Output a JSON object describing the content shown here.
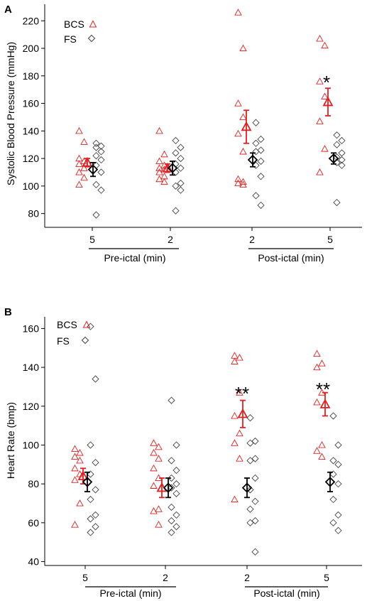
{
  "panels": [
    {
      "letter": "A",
      "ylabel": "Systolic Blood Pressure (mmHg)",
      "ylim": [
        70,
        232
      ],
      "yticks": [
        80,
        100,
        120,
        140,
        160,
        180,
        200,
        220
      ],
      "legend": {
        "items": [
          {
            "label": "BCS",
            "marker": "triangle"
          },
          {
            "label": "FS",
            "marker": "diamond"
          }
        ],
        "placement": "top-left"
      },
      "xticks": [
        "5",
        "2",
        "2",
        "5"
      ],
      "phase_labels": [
        "Pre-ictal (min)",
        "Post-ictal (min)"
      ],
      "significance": [
        {
          "label": "*",
          "group": 3
        }
      ]
    },
    {
      "letter": "B",
      "ylabel": "Heart Rate (bmp)",
      "ylim": [
        38,
        166
      ],
      "yticks": [
        40,
        60,
        80,
        100,
        120,
        140,
        160
      ],
      "legend": {
        "items": [
          {
            "label": "BCS",
            "marker": "triangle"
          },
          {
            "label": "FS",
            "marker": "diamond"
          }
        ],
        "placement": "top-left"
      },
      "xticks": [
        "5",
        "2",
        "2",
        "5"
      ],
      "phase_labels": [
        "Pre-ictal (min)",
        "Post-ictal (min)"
      ],
      "significance": [
        {
          "label": "**",
          "group": 2
        },
        {
          "label": "**",
          "group": 3
        }
      ]
    }
  ],
  "colors": {
    "bcs": "#e02020",
    "fs": "#444444",
    "axis": "#000000"
  },
  "chart_data": [
    {
      "type": "scatter",
      "ylabel": "Systolic Blood Pressure (mmHg)",
      "ylim": [
        70,
        232
      ],
      "categories": [
        "5",
        "2",
        "2",
        "5"
      ],
      "series": [
        {
          "name": "BCS",
          "points": [
            [
              140,
              132,
              120,
              118,
              116,
              113,
              110,
              106,
              101
            ],
            [
              140,
              123,
              118,
              115,
              113,
              112,
              110,
              107,
              105,
              103
            ],
            [
              226,
              200,
              160,
              150,
              138,
              125,
              105,
              103,
              102,
              101
            ],
            [
              207,
              202,
              176,
              165,
              147,
              127,
              110
            ]
          ],
          "mean": [
            117,
            113,
            143,
            161
          ],
          "sem": [
            3,
            3,
            12,
            10
          ]
        },
        {
          "name": "FS",
          "points": [
            [
              131,
              129,
              128,
              125,
              122,
              119,
              115,
              110,
              101,
              97,
              79
            ],
            [
              133,
              128,
              124,
              120,
              116,
              113,
              110,
              102,
              100,
              97,
              82
            ],
            [
              146,
              134,
              131,
              126,
              125,
              118,
              115,
              107,
              93,
              86
            ],
            [
              137,
              133,
              130,
              124,
              121,
              119,
              117,
              115,
              88
            ]
          ],
          "mean": [
            112,
            113,
            119,
            120
          ],
          "sem": [
            5,
            5,
            5,
            4
          ]
        }
      ]
    },
    {
      "type": "scatter",
      "ylabel": "Heart Rate (bmp)",
      "ylim": [
        38,
        166
      ],
      "categories": [
        "5",
        "2",
        "2",
        "5"
      ],
      "series": [
        {
          "name": "BCS",
          "points": [
            [
              98,
              96,
              94,
              92,
              88,
              85,
              82,
              70,
              59
            ],
            [
              101,
              99,
              96,
              93,
              88,
              83,
              79,
              67,
              66,
              59
            ],
            [
              146,
              145,
              143,
              127,
              115,
              106,
              101,
              93,
              72
            ],
            [
              147,
              142,
              140,
              127,
              122,
              100,
              97,
              94
            ]
          ],
          "mean": [
            84,
            78,
            116,
            121
          ],
          "sem": [
            4,
            5,
            7,
            6
          ]
        },
        {
          "name": "FS",
          "points": [
            [
              161,
              134,
              100,
              91,
              85,
              77,
              72,
              64,
              62,
              58,
              55
            ],
            [
              123,
              100,
              92,
              87,
              83,
              80,
              78,
              75,
              68,
              64,
              61,
              58,
              55
            ],
            [
              114,
              102,
              101,
              93,
              92,
              83,
              77,
              71,
              67,
              61,
              60,
              45
            ],
            [
              115,
              100,
              92,
              90,
              85,
              80,
              72,
              64,
              60,
              56
            ]
          ],
          "mean": [
            81,
            78,
            78,
            81
          ],
          "sem": [
            5,
            5,
            5,
            5
          ]
        }
      ]
    }
  ]
}
